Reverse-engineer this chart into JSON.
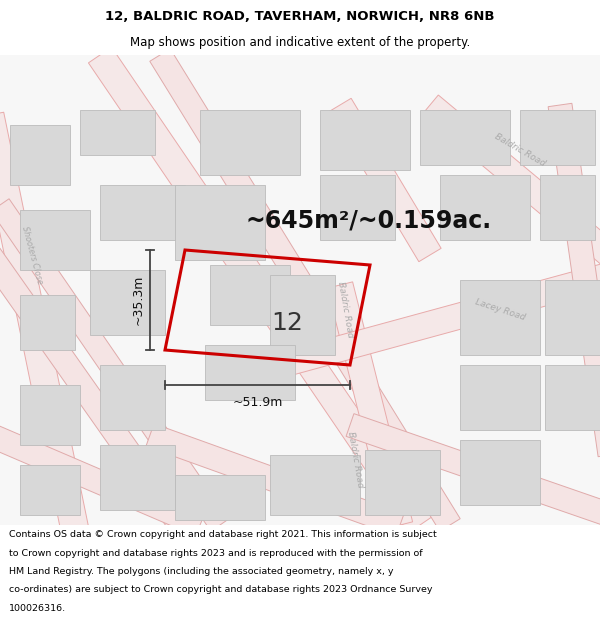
{
  "title": "12, BALDRIC ROAD, TAVERHAM, NORWICH, NR8 6NB",
  "subtitle": "Map shows position and indicative extent of the property.",
  "area_text": "~645m²/~0.159ac.",
  "dim_width": "~51.9m",
  "dim_height": "~35.3m",
  "property_number": "12",
  "footer_lines": [
    "Contains OS data © Crown copyright and database right 2021. This information is subject",
    "to Crown copyright and database rights 2023 and is reproduced with the permission of",
    "HM Land Registry. The polygons (including the associated geometry, namely x, y",
    "co-ordinates) are subject to Crown copyright and database rights 2023 Ordnance Survey",
    "100026316."
  ],
  "map_bg": "#f7f7f7",
  "road_color": "#e8aaaa",
  "road_lw": 1.0,
  "building_fill": "#d8d8d8",
  "building_edge": "#c0c0c0",
  "plot_stroke": "#cc0000",
  "plot_fill": "none",
  "road_label_color": "#aaaaaa",
  "title_fontsize": 9.5,
  "subtitle_fontsize": 8.5,
  "area_fontsize": 17,
  "dim_fontsize": 9,
  "footer_fontsize": 6.8,
  "number_fontsize": 18
}
